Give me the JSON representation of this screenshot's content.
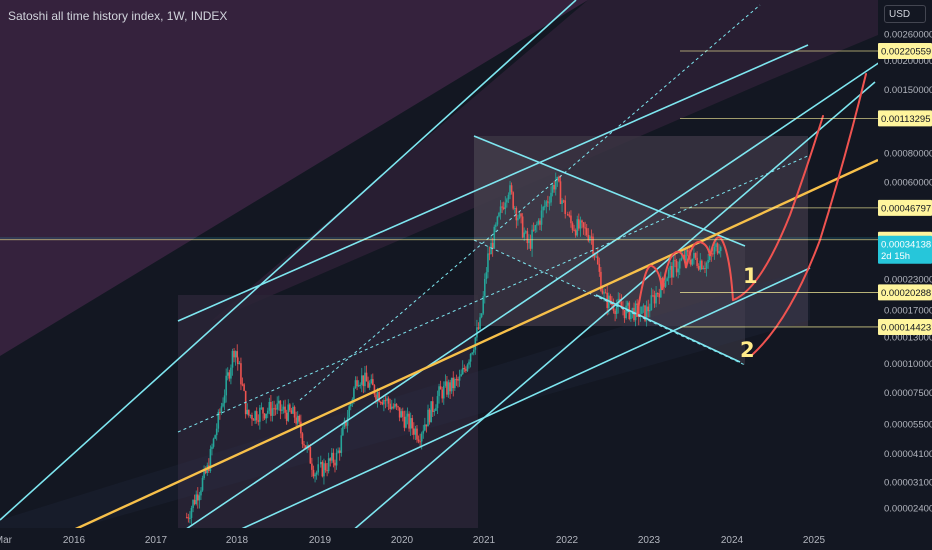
{
  "header": {
    "title": "Satoshi all time history index, 1W, INDEX",
    "currency": "USD"
  },
  "colors": {
    "background": "#131722",
    "purple_zone": "#3a2440",
    "channel_band": "#2a2a3a",
    "channel_line": "#7ee6f0",
    "trend_line": "#f7c04a",
    "projection": "#ef5350",
    "candle_up": "#26a69a",
    "candle_down": "#ef5350",
    "level_box": "#fff59d",
    "current_box": "#26c6da"
  },
  "chart_data": {
    "type": "candlestick",
    "title": "Satoshi all time history index, 1W, INDEX",
    "scale": "log",
    "x_ticks": [
      "Mar",
      "2016",
      "2017",
      "2018",
      "2019",
      "2020",
      "2021",
      "2022",
      "2023",
      "2024",
      "2025"
    ],
    "y_ticks": [
      "0.00260000",
      "0.00200000",
      "0.00150000",
      "0.00110000",
      "0.00080000",
      "0.00060000",
      "0.00034154",
      "0.00023000",
      "0.00017000",
      "0.00013000",
      "0.00010000",
      "0.00007500",
      "0.00005500",
      "0.00004100",
      "0.00003100",
      "0.00002400"
    ],
    "price_levels": [
      {
        "value": "0.00220559",
        "y": 0.00220559
      },
      {
        "value": "0.00113295",
        "y": 0.00113295
      },
      {
        "value": "0.00046797",
        "y": 0.00046797
      },
      {
        "value": "0.00034154",
        "y": 0.00034154
      },
      {
        "value": "0.00020288",
        "y": 0.00020288
      },
      {
        "value": "0.00014423",
        "y": 0.00014423
      }
    ],
    "current_price": {
      "value": "0.00034138",
      "countdown": "2d 15h",
      "y": 0.00034138
    },
    "annotations": [
      "1",
      "2"
    ],
    "weekly_close": [
      [
        "2017-05",
        2.2e-05
      ],
      [
        "2017-08",
        3.5e-05
      ],
      [
        "2017-12",
        0.00012
      ],
      [
        "2018-01",
        9e-05
      ],
      [
        "2018-02",
        6e-05
      ],
      [
        "2018-06",
        6.5e-05
      ],
      [
        "2018-09",
        6e-05
      ],
      [
        "2018-12",
        3.4e-05
      ],
      [
        "2019-03",
        4e-05
      ],
      [
        "2019-06",
        9e-05
      ],
      [
        "2019-09",
        7.5e-05
      ],
      [
        "2019-12",
        6.2e-05
      ],
      [
        "2020-03",
        5e-05
      ],
      [
        "2020-06",
        7.5e-05
      ],
      [
        "2020-09",
        8.5e-05
      ],
      [
        "2020-12",
        0.00015
      ],
      [
        "2021-01",
        0.00028
      ],
      [
        "2021-04",
        0.00058
      ],
      [
        "2021-07",
        0.00032
      ],
      [
        "2021-11",
        0.00062
      ],
      [
        "2022-01",
        0.0004
      ],
      [
        "2022-04",
        0.00036
      ],
      [
        "2022-06",
        0.00019
      ],
      [
        "2022-09",
        0.00017
      ],
      [
        "2022-12",
        0.000165
      ],
      [
        "2023-03",
        0.00024
      ],
      [
        "2023-06",
        0.00029
      ],
      [
        "2023-09",
        0.00027
      ],
      [
        "2023-11",
        0.00034138
      ]
    ]
  }
}
